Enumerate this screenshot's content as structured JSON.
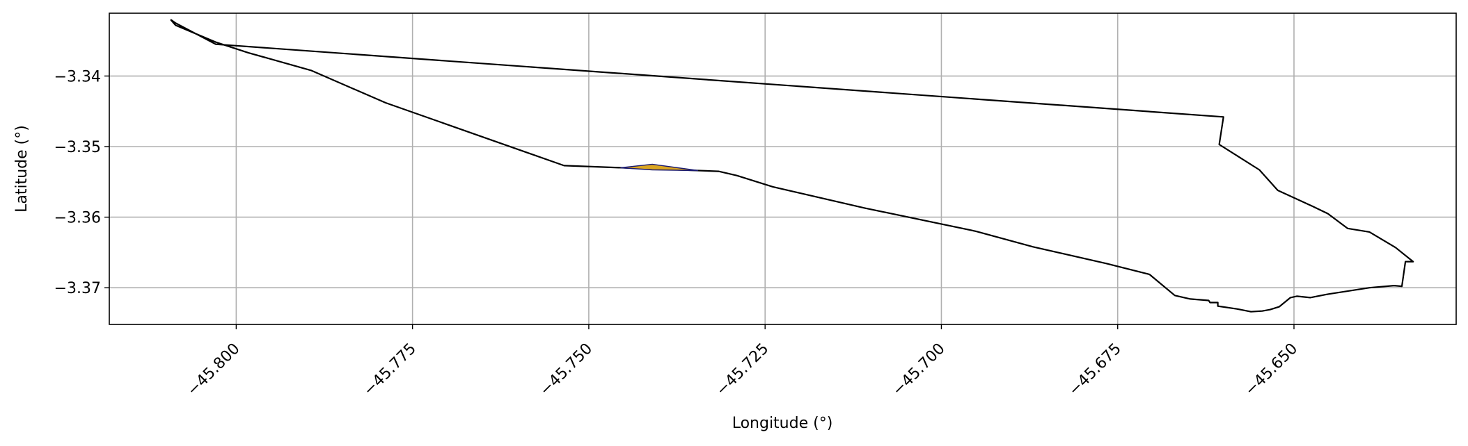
{
  "chart_data": {
    "type": "line",
    "title": "",
    "xlabel": "Longitude (°)",
    "ylabel": "Latitude (°)",
    "xlim": [
      -45.818,
      -45.627
    ],
    "ylim": [
      -3.3752,
      -3.3311
    ],
    "x_ticks": [
      -45.8,
      -45.775,
      -45.75,
      -45.725,
      -45.7,
      -45.675,
      -45.65
    ],
    "x_tick_labels": [
      "−45.800",
      "−45.775",
      "−45.750",
      "−45.725",
      "−45.700",
      "−45.675",
      "−45.650"
    ],
    "y_ticks": [
      -3.34,
      -3.35,
      -3.36,
      -3.37
    ],
    "y_tick_labels": [
      "−3.34",
      "−3.35",
      "−3.36",
      "−3.37"
    ],
    "grid": true,
    "series": [
      {
        "color": "#000000",
        "x": [
          -45.8093,
          -45.8086,
          -45.8029,
          -45.7983,
          -45.7894,
          -45.7788,
          -45.7535,
          -45.7316,
          -45.729,
          -45.7239,
          -45.7109,
          -45.6951,
          -45.687,
          -45.6765,
          -45.6705,
          -45.6669,
          -45.6647,
          -45.6621,
          -45.6619,
          -45.6608,
          -45.6608,
          -45.6581,
          -45.6561,
          -45.6545,
          -45.6534,
          -45.6521,
          -45.6505,
          -45.6496,
          -45.6477,
          -45.6451,
          -45.6393,
          -45.6358,
          -45.6347,
          -45.6342,
          -45.6331,
          -45.6356,
          -45.6393,
          -45.6424,
          -45.6452,
          -45.6473,
          -45.6523,
          -45.6549,
          -45.6606,
          -45.66,
          -45.8029,
          -45.8086,
          -45.8093
        ],
        "y": [
          -3.332,
          -3.3328,
          -3.3352,
          -3.3367,
          -3.3392,
          -3.3438,
          -3.3527,
          -3.3535,
          -3.3541,
          -3.3557,
          -3.3587,
          -3.362,
          -3.3642,
          -3.3666,
          -3.3681,
          -3.3711,
          -3.3716,
          -3.3718,
          -3.3721,
          -3.3721,
          -3.3726,
          -3.373,
          -3.3734,
          -3.3733,
          -3.3731,
          -3.3727,
          -3.3714,
          -3.3712,
          -3.3714,
          -3.3709,
          -3.37,
          -3.3697,
          -3.3698,
          -3.3663,
          -3.3663,
          -3.3643,
          -3.3621,
          -3.3616,
          -3.3595,
          -3.3585,
          -3.3562,
          -3.3533,
          -3.3497,
          -3.3458,
          -3.3355,
          -3.3325,
          -3.332
        ]
      },
      {
        "color": "#daa520",
        "edge_color": "#191970",
        "x": [
          -45.7455,
          -45.741,
          -45.7345,
          -45.741,
          -45.7455
        ],
        "y": [
          -3.353,
          -3.3525,
          -3.3534,
          -3.3533,
          -3.353
        ]
      }
    ]
  }
}
